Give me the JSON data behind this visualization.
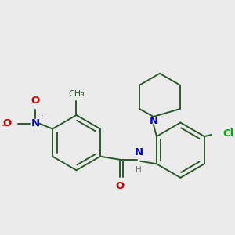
{
  "bg_color": "#ebebeb",
  "bond_color": "#2d5a2d",
  "bond_width": 1.4,
  "dbo": 0.055,
  "atom_colors": {
    "N": "#0000cc",
    "O": "#cc0000",
    "Cl": "#00aa00",
    "H": "#777777",
    "C": "#2d5a2d"
  },
  "font_size": 9.5,
  "fig_size": [
    3.0,
    3.0
  ],
  "dpi": 100
}
